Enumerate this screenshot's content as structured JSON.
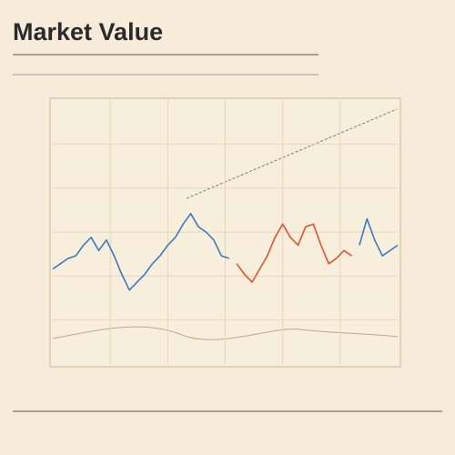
{
  "chart_data": {
    "type": "line",
    "title": "Market Value",
    "categories": [
      null,
      null,
      null,
      null,
      null,
      null,
      null,
      null,
      null,
      null,
      null,
      null,
      null,
      null,
      null,
      null,
      null,
      null,
      null,
      null,
      null,
      null,
      null,
      null,
      null,
      null,
      null,
      null,
      null,
      null,
      null,
      null,
      null,
      null,
      null,
      null,
      null,
      null,
      null,
      null,
      null,
      null,
      null,
      null,
      null,
      null
    ],
    "series": [
      {
        "color": "#3a7bbf",
        "values": [
          36,
          38,
          40,
          41,
          45,
          48,
          43,
          47,
          41,
          34,
          28,
          31,
          34,
          38,
          41,
          45,
          48,
          53,
          57,
          52,
          50,
          47,
          41,
          40,
          null,
          null,
          null,
          null,
          null,
          null,
          null,
          null,
          null,
          null,
          null,
          null,
          null,
          null,
          null,
          null,
          45,
          55,
          47,
          41,
          43,
          45
        ]
      },
      {
        "color": "#e0542f",
        "values": [
          null,
          null,
          null,
          null,
          null,
          null,
          null,
          null,
          null,
          null,
          null,
          null,
          null,
          null,
          null,
          null,
          null,
          null,
          null,
          null,
          null,
          null,
          null,
          null,
          38,
          34,
          31,
          36,
          41,
          48,
          53,
          48,
          45,
          52,
          53,
          45,
          38,
          40,
          43,
          41,
          null,
          null,
          null,
          null,
          null,
          null
        ]
      }
    ],
    "ylim": [
      0,
      100
    ],
    "grid": true
  }
}
